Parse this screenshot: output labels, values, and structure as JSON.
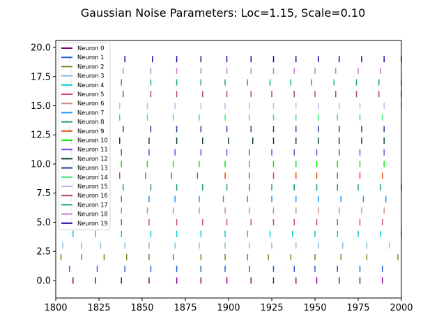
{
  "chart_data": {
    "type": "scatter",
    "title": "Gaussian Noise Parameters: Loc=1.15, Scale=0.10",
    "xlabel": "",
    "ylabel": "",
    "xlim": [
      1800,
      2000
    ],
    "ylim": [
      -1.5,
      20.6
    ],
    "xticks": [
      1800,
      1825,
      1850,
      1875,
      1900,
      1925,
      1950,
      1975,
      2000
    ],
    "xtick_labels": [
      "1800",
      "1825",
      "1850",
      "1875",
      "1900",
      "1925",
      "1950",
      "1975",
      "2000"
    ],
    "yticks": [
      0,
      2.5,
      5,
      7.5,
      10,
      12.5,
      15,
      17.5,
      20
    ],
    "ytick_labels": [
      "0.0",
      "2.5",
      "5.0",
      "7.5",
      "10.0",
      "12.5",
      "15.0",
      "17.5",
      "20.0"
    ],
    "grid": false,
    "legend_position": "top-left",
    "series": [
      {
        "name": "Neuron 0",
        "color": "#800080",
        "y": 0,
        "x": [
          1810,
          1823,
          1838,
          1854,
          1870,
          1884,
          1899,
          1913,
          1926,
          1939,
          1951,
          1964,
          1976,
          1989
        ]
      },
      {
        "name": "Neuron 1",
        "color": "#1f5fd6",
        "y": 1,
        "x": [
          1808,
          1824,
          1840,
          1855,
          1870,
          1884,
          1898,
          1912,
          1926,
          1938,
          1950,
          1963,
          1976,
          1989
        ]
      },
      {
        "name": "Neuron 2",
        "color": "#6b8e23",
        "y": 2,
        "x": [
          1803,
          1815,
          1828,
          1841,
          1854,
          1868,
          1884,
          1898,
          1911,
          1923,
          1936,
          1950,
          1965,
          1980,
          1998
        ]
      },
      {
        "name": "Neuron 3",
        "color": "#87bdd8",
        "y": 3,
        "x": [
          1804,
          1815,
          1826,
          1840,
          1854,
          1869,
          1883,
          1898,
          1912,
          1925,
          1939,
          1952,
          1966,
          1980,
          1993
        ]
      },
      {
        "name": "Neuron 4",
        "color": "#00ced1",
        "y": 4,
        "x": [
          1810,
          1823,
          1838,
          1855,
          1870,
          1884,
          1898,
          1911,
          1924,
          1937,
          1950,
          1963,
          1975,
          1988,
          2000
        ]
      },
      {
        "name": "Neuron 5",
        "color": "#cd4b70",
        "y": 5,
        "x": [
          1809,
          1823,
          1838,
          1854,
          1870,
          1885,
          1899,
          1913,
          1926,
          1938,
          1951,
          1963,
          1976,
          1989
        ]
      },
      {
        "name": "Neuron 6",
        "color": "#c48f7f",
        "y": 6,
        "x": [
          1809,
          1823,
          1838,
          1853,
          1868,
          1883,
          1898,
          1912,
          1926,
          1939,
          1952,
          1964,
          1977,
          1990
        ]
      },
      {
        "name": "Neuron 7",
        "color": "#1e90ff",
        "y": 7,
        "x": [
          1809,
          1823,
          1838,
          1854,
          1869,
          1883,
          1897,
          1911,
          1925,
          1939,
          1952,
          1965,
          1978,
          1991
        ]
      },
      {
        "name": "Neuron 8",
        "color": "#1a9a6c",
        "y": 8,
        "x": [
          1810,
          1824,
          1839,
          1855,
          1870,
          1885,
          1899,
          1912,
          1925,
          1938,
          1951,
          1963,
          1975,
          1988,
          2000
        ]
      },
      {
        "name": "Neuron 9",
        "color": "#e8460b",
        "y": 9,
        "x": [
          1811,
          1825,
          1837,
          1852,
          1867,
          1882,
          1898,
          1912,
          1926,
          1939,
          1951,
          1963,
          1976,
          1989
        ]
      },
      {
        "name": "Neuron 10",
        "color": "#00ee00",
        "y": 10,
        "x": [
          1810,
          1823,
          1838,
          1853,
          1868,
          1883,
          1898,
          1912,
          1926,
          1939,
          1951,
          1963,
          1976,
          1990
        ]
      },
      {
        "name": "Neuron 11",
        "color": "#7b3fe4",
        "y": 11,
        "x": [
          1809,
          1823,
          1838,
          1854,
          1869,
          1884,
          1899,
          1912,
          1925,
          1938,
          1951,
          1964,
          1976,
          1990
        ]
      },
      {
        "name": "Neuron 12",
        "color": "#0f3d2e",
        "y": 12,
        "x": [
          1809,
          1823,
          1837,
          1854,
          1870,
          1885,
          1900,
          1914,
          1926,
          1939,
          1952,
          1964,
          1977,
          1990
        ]
      },
      {
        "name": "Neuron 13",
        "color": "#1c3f94",
        "y": 13,
        "x": [
          1808,
          1824,
          1839,
          1855,
          1870,
          1884,
          1899,
          1913,
          1926,
          1939,
          1952,
          1964,
          1977,
          1990
        ]
      },
      {
        "name": "Neuron 14",
        "color": "#3ce37a",
        "y": 14,
        "x": [
          1810,
          1823,
          1837,
          1853,
          1868,
          1883,
          1898,
          1912,
          1926,
          1939,
          1952,
          1963,
          1976,
          1989
        ]
      },
      {
        "name": "Neuron 15",
        "color": "#c3b4f0",
        "y": 15,
        "x": [
          1809,
          1823,
          1837,
          1853,
          1869,
          1884,
          1898,
          1912,
          1926,
          1939,
          1952,
          1964,
          1976,
          1990,
          2000
        ]
      },
      {
        "name": "Neuron 16",
        "color": "#b0445f",
        "y": 16,
        "x": [
          1810,
          1825,
          1839,
          1855,
          1870,
          1885,
          1899,
          1913,
          1925,
          1938,
          1950,
          1962,
          1974,
          1987,
          2000
        ]
      },
      {
        "name": "Neuron 17",
        "color": "#19a58a",
        "y": 17,
        "x": [
          1809,
          1823,
          1838,
          1855,
          1870,
          1884,
          1898,
          1911,
          1924,
          1936,
          1948,
          1961,
          1974,
          1987,
          2000
        ]
      },
      {
        "name": "Neuron 18",
        "color": "#c77fd4",
        "y": 18,
        "x": [
          1809,
          1823,
          1839,
          1855,
          1870,
          1884,
          1899,
          1913,
          1926,
          1938,
          1950,
          1962,
          1975,
          1988
        ]
      },
      {
        "name": "Neuron 19",
        "color": "#0a0aa0",
        "y": 19,
        "x": [
          1808,
          1823,
          1840,
          1856,
          1870,
          1884,
          1899,
          1913,
          1926,
          1939,
          1952,
          1964,
          1977,
          1990,
          2000
        ]
      }
    ]
  }
}
